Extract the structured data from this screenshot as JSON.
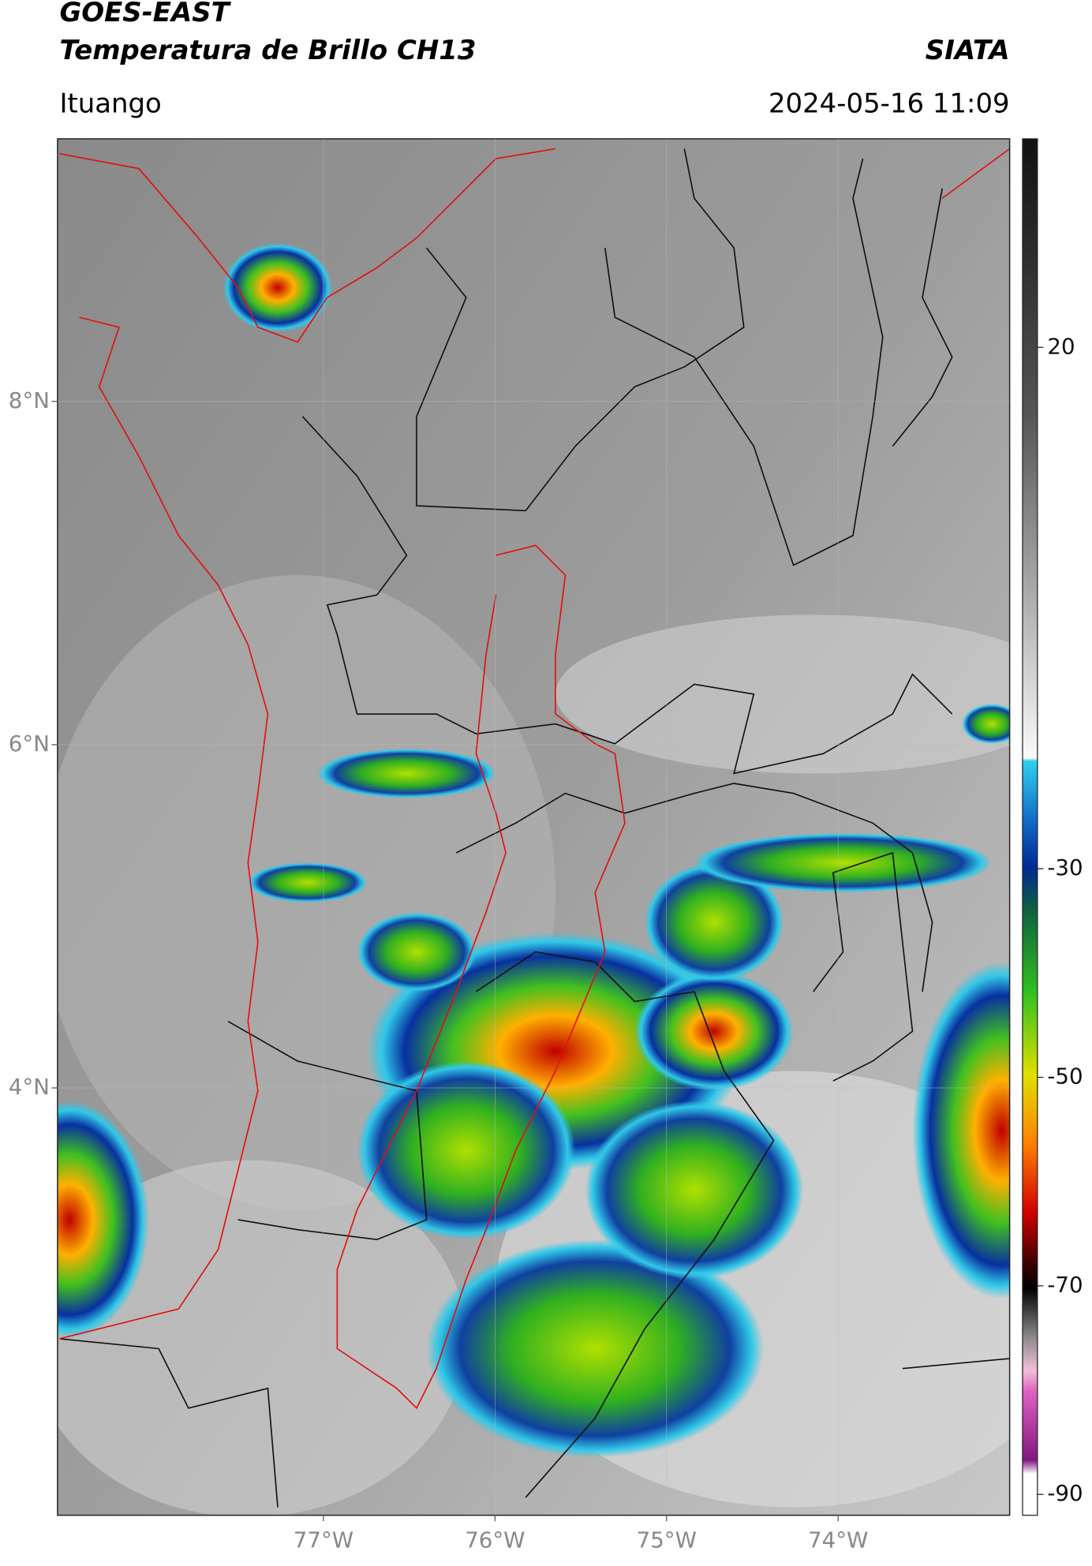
{
  "header": {
    "title_line1": "GOES-EAST",
    "title_line2": "Temperatura de Brillo CH13",
    "brand": "SIATA",
    "location": "Ituango",
    "datetime": "2024-05-16 11:09"
  },
  "map": {
    "xlim": [
      -78.55,
      -73.0
    ],
    "ylim": [
      1.51,
      9.53
    ],
    "yticks": [
      {
        "value": 8,
        "label": "8°N"
      },
      {
        "value": 6,
        "label": "6°N"
      },
      {
        "value": 4,
        "label": "4°N"
      }
    ],
    "xticks": [
      {
        "value": -77,
        "label": "77°W"
      },
      {
        "value": -76,
        "label": "76°W"
      },
      {
        "value": -75,
        "label": "75°W"
      },
      {
        "value": -74,
        "label": "74°W"
      }
    ]
  },
  "colorbar": {
    "lim": [
      40,
      -92
    ],
    "ticks": [
      20,
      -30,
      -50,
      -70,
      -90
    ]
  }
}
